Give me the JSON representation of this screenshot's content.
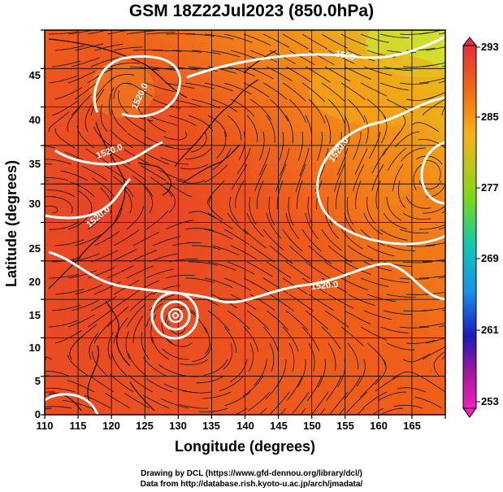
{
  "title": "GSM 18Z22Jul2023 (850.0hPa)",
  "xlabel": "Longitude (degrees)",
  "ylabel": "Latitude  (degrees)",
  "credits": {
    "line1": "Drawing by DCL (https://www.gfd-dennou.org/library/dcl/)",
    "line2": "Data from http://database.rish.kyoto-u.ac.jp/arch/jmadata/"
  },
  "map": {
    "lon_range": [
      110,
      170
    ],
    "lat_range": [
      0,
      50
    ],
    "lon_ticks": [
      "110",
      "115",
      "120",
      "125",
      "130",
      "135",
      "140",
      "145",
      "150",
      "155",
      "160",
      "165"
    ],
    "lat_ticks": [
      "0",
      "5",
      "10",
      "15",
      "20",
      "25",
      "30",
      "35",
      "40",
      "45"
    ],
    "grid": true,
    "field": "temperature (shaded) with streamlines and geopotential height contours",
    "contour_labels": [
      "1520",
      "1520.0",
      "1520.0",
      "1520.0",
      "1520.0",
      "1520.0"
    ]
  },
  "colorbar": {
    "ticks": [
      "293",
      "285",
      "277",
      "269",
      "261",
      "253"
    ],
    "colors": [
      "#e0303a",
      "#f06a14",
      "#f5b418",
      "#7cd81a",
      "#10c8b0",
      "#1890e8",
      "#1a1ab8",
      "#a0189c",
      "#f020c0"
    ]
  }
}
